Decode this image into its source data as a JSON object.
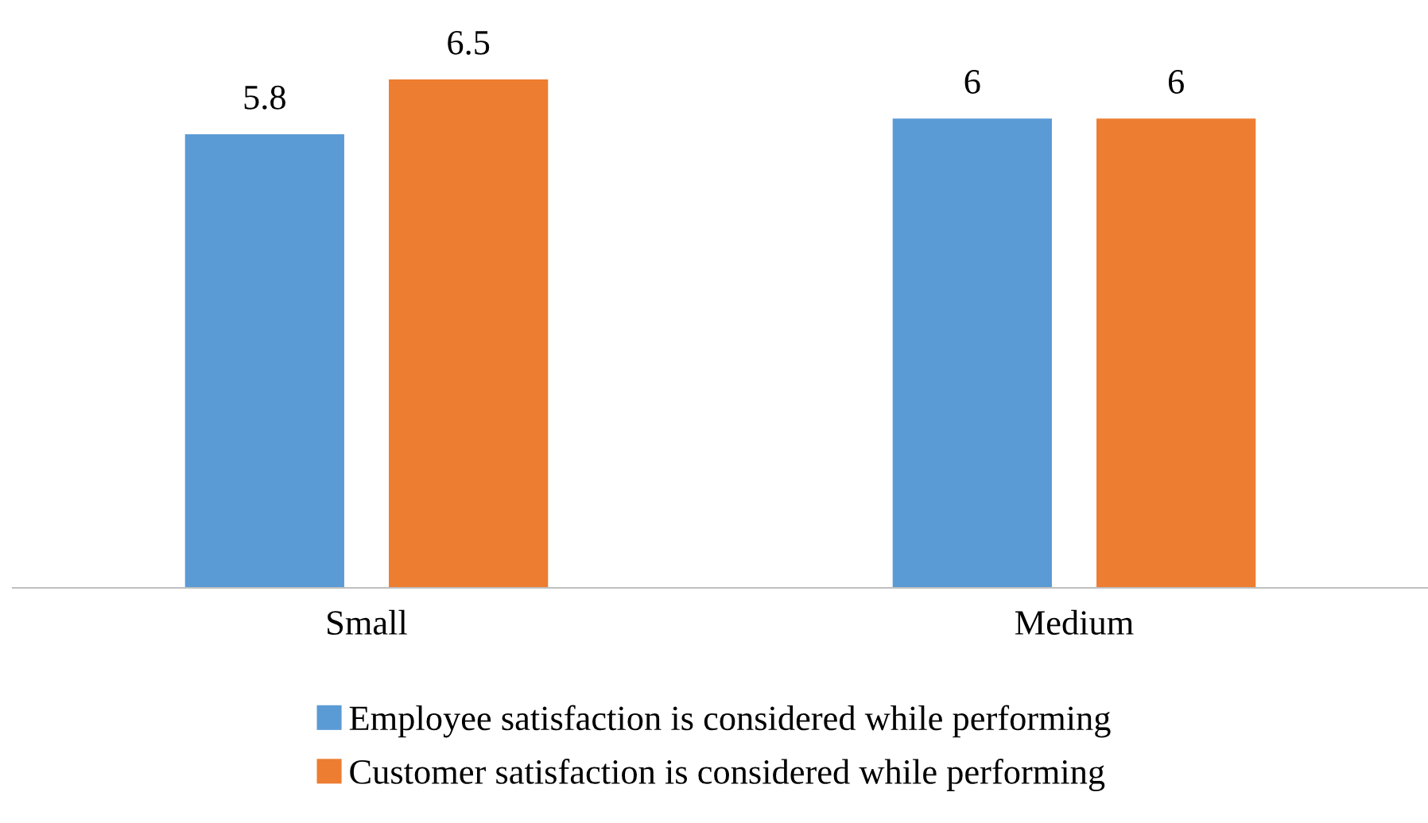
{
  "chart_data": {
    "type": "bar",
    "categories": [
      "Small",
      "Medium"
    ],
    "series": [
      {
        "name": "Employee satisfaction is considered while performing",
        "color": "#5b9bd5",
        "values": [
          5.8,
          6
        ]
      },
      {
        "name": "Customer satisfaction is considered while performing",
        "color": "#ed7d31",
        "values": [
          6.5,
          6
        ]
      }
    ],
    "tick_labels": "x",
    "data_labels": true,
    "legend": "bottom",
    "grid": false
  }
}
